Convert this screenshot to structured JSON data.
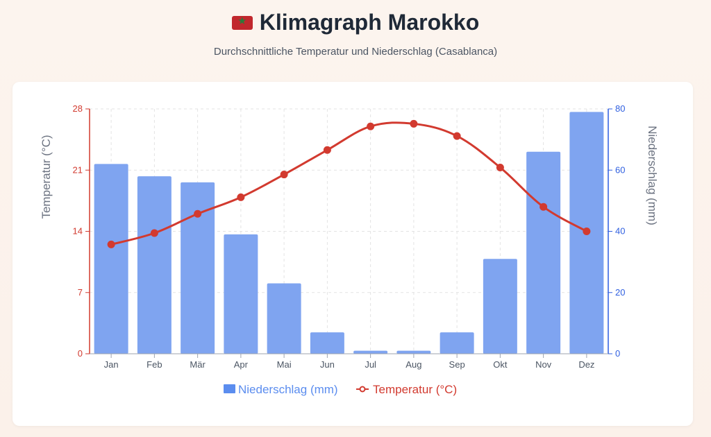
{
  "header": {
    "flag_icon": "morocco-flag",
    "title": "Klimagraph Marokko",
    "subtitle": "Durchschnittliche Temperatur und Niederschlag (Casablanca)"
  },
  "chart_data": {
    "type": "bar+line",
    "categories": [
      "Jan",
      "Feb",
      "Mär",
      "Apr",
      "Mai",
      "Jun",
      "Jul",
      "Aug",
      "Sep",
      "Okt",
      "Nov",
      "Dez"
    ],
    "series": [
      {
        "name": "Niederschlag (mm)",
        "type": "bar",
        "axis": "right",
        "color": "#7fa4f0",
        "values": [
          62,
          58,
          56,
          39,
          23,
          7,
          1,
          1,
          7,
          31,
          66,
          79
        ]
      },
      {
        "name": "Temperatur (°C)",
        "type": "line",
        "axis": "left",
        "color": "#d23a2f",
        "values": [
          12.5,
          13.8,
          16,
          17.9,
          20.5,
          23.3,
          26,
          26.3,
          24.9,
          21.3,
          16.8,
          14
        ]
      }
    ],
    "y_left": {
      "label": "Temperatur (°C)",
      "range": [
        0,
        28
      ],
      "ticks": [
        0,
        7,
        14,
        21,
        28
      ],
      "color": "#d23a2f"
    },
    "y_right": {
      "label": "Niederschlag (mm)",
      "range": [
        0,
        80
      ],
      "ticks": [
        0,
        20,
        40,
        60,
        80
      ],
      "color": "#2f5fe0"
    },
    "grid": true,
    "legend": "bottom"
  }
}
